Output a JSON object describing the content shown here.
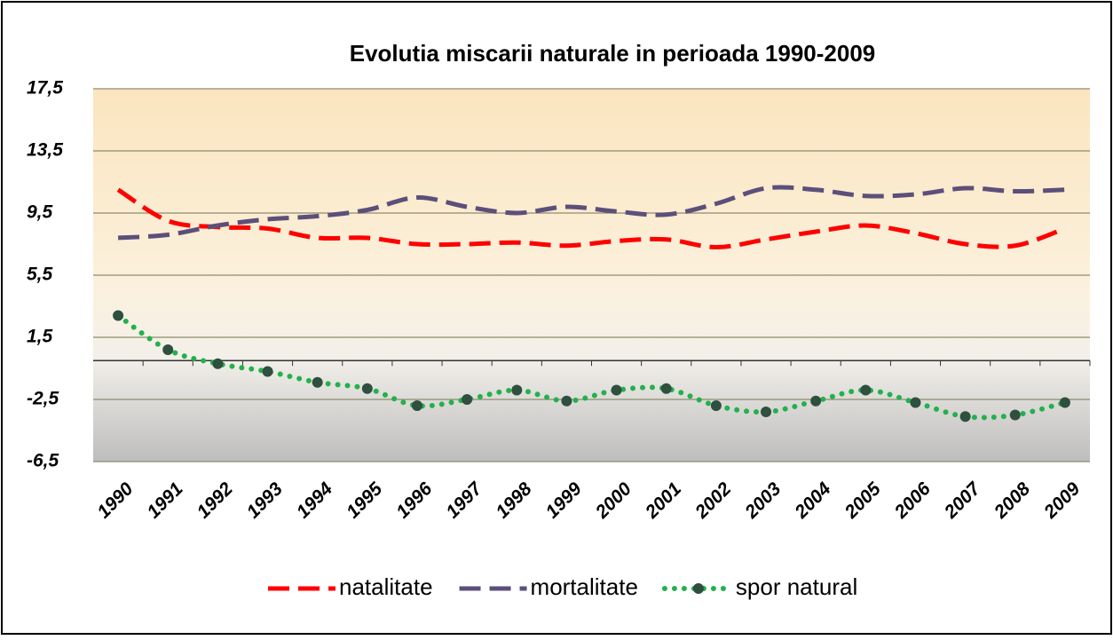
{
  "chart_data": {
    "type": "line",
    "title": "Evolutia miscarii naturale in perioada 1990-2009",
    "categories": [
      "1990",
      "1991",
      "1992",
      "1993",
      "1994",
      "1995",
      "1996",
      "1997",
      "1998",
      "1999",
      "2000",
      "2001",
      "2002",
      "2003",
      "2004",
      "2005",
      "2006",
      "2007",
      "2008",
      "2009"
    ],
    "series": [
      {
        "name": "natalitate",
        "color": "#ff0000",
        "style": "dashed",
        "values": [
          11.0,
          9.0,
          8.6,
          8.5,
          7.9,
          7.9,
          7.5,
          7.5,
          7.6,
          7.4,
          7.7,
          7.8,
          7.3,
          7.8,
          8.3,
          8.7,
          8.2,
          7.5,
          7.4,
          8.5
        ]
      },
      {
        "name": "mortalitate",
        "color": "#5c4f7a",
        "style": "dashed",
        "values": [
          7.9,
          8.1,
          8.7,
          9.1,
          9.3,
          9.7,
          10.5,
          9.9,
          9.5,
          9.9,
          9.6,
          9.4,
          10.1,
          11.1,
          11.0,
          10.6,
          10.7,
          11.1,
          10.9,
          11.0
        ]
      },
      {
        "name": "spor natural",
        "color": "#22b14c",
        "marker_color": "#2f4f3f",
        "style": "dotted",
        "values": [
          2.9,
          0.7,
          -0.2,
          -0.7,
          -1.4,
          -1.8,
          -2.9,
          -2.5,
          -1.9,
          -2.6,
          -1.9,
          -1.8,
          -2.9,
          -3.3,
          -2.6,
          -1.9,
          -2.7,
          -3.6,
          -3.5,
          -2.7
        ]
      }
    ],
    "ylim": [
      -6.5,
      17.5
    ],
    "yticks": [
      {
        "value": -6.5,
        "label": "-6,5"
      },
      {
        "value": -2.5,
        "label": "-2,5"
      },
      {
        "value": 1.5,
        "label": "1,5"
      },
      {
        "value": 5.5,
        "label": "5,5"
      },
      {
        "value": 9.5,
        "label": "9,5"
      },
      {
        "value": 13.5,
        "label": "13,5"
      },
      {
        "value": 17.5,
        "label": "17,5"
      }
    ],
    "grid": true,
    "legend": "bottom"
  }
}
